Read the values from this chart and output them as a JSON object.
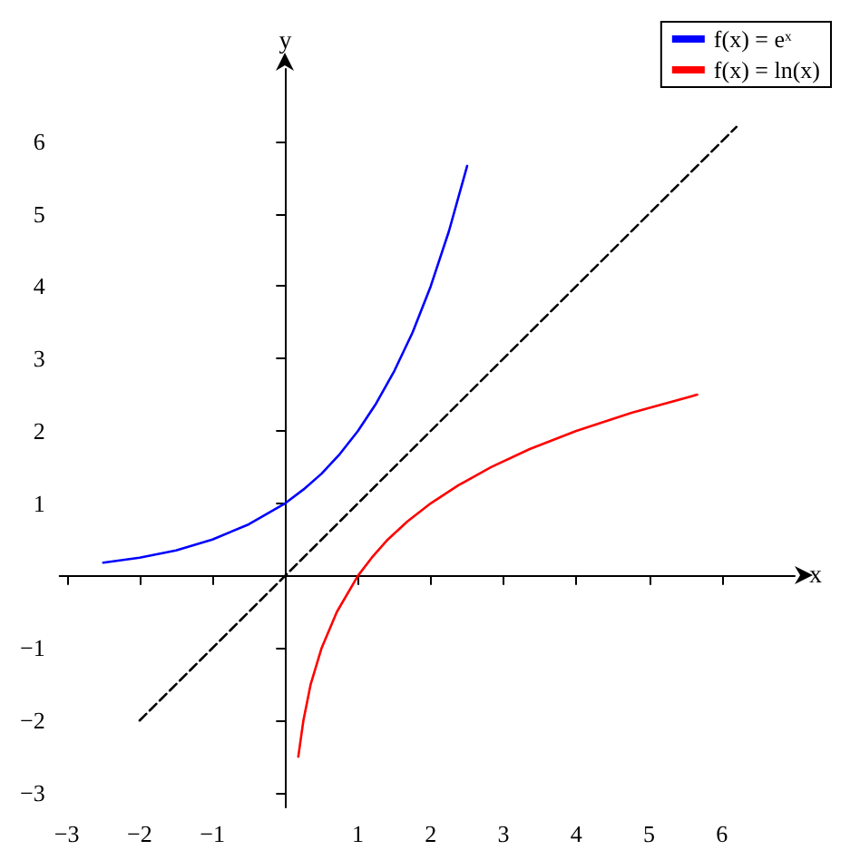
{
  "chart_data": {
    "type": "line",
    "xlabel": "x",
    "ylabel": "y",
    "xlim": [
      -3.1,
      7
    ],
    "ylim": [
      -3.2,
      7
    ],
    "xticks": [
      -3,
      -2,
      -1,
      1,
      2,
      3,
      4,
      5,
      6
    ],
    "yticks": [
      -3,
      -2,
      -1,
      1,
      2,
      3,
      4,
      5,
      6
    ],
    "grid": false,
    "legend": "top right",
    "marker": "none",
    "line_style": "solid",
    "series": [
      {
        "name": "f(x) = eˣ",
        "color": "#0000ff",
        "x": [
          -2.5,
          -2,
          -1.5,
          -1,
          -0.5,
          0,
          0.25,
          0.5,
          0.75,
          1,
          1.25,
          1.5,
          1.75,
          2,
          2.25,
          2.5
        ],
        "values": [
          0.18,
          0.25,
          0.35,
          0.5,
          0.71,
          1,
          1.19,
          1.41,
          1.68,
          2,
          2.38,
          2.83,
          3.36,
          4,
          4.76,
          5.66
        ]
      },
      {
        "name": "f(x) = ln(x)",
        "color": "#ff0000",
        "x": [
          0.18,
          0.25,
          0.35,
          0.5,
          0.71,
          1,
          1.19,
          1.41,
          1.68,
          2,
          2.38,
          2.83,
          3.36,
          4,
          4.76,
          5.66
        ],
        "values": [
          -2.5,
          -2,
          -1.5,
          -1,
          -0.5,
          0,
          0.25,
          0.5,
          0.75,
          1,
          1.25,
          1.5,
          1.75,
          2,
          2.25,
          2.5
        ]
      },
      {
        "color": "#000000",
        "line_style": "dashed",
        "x": [
          -2,
          6.2
        ],
        "values": [
          -2,
          6.2
        ]
      }
    ]
  }
}
